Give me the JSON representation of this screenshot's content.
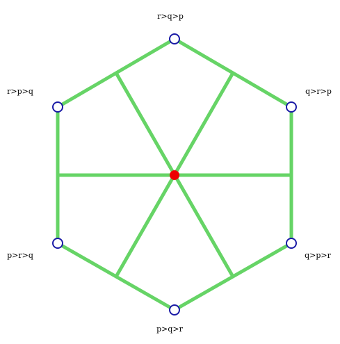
{
  "diagram": {
    "labels": {
      "top": "r>q>p",
      "upper_left": "r>p>q",
      "upper_right": "q>r>p",
      "lower_left": "p>r>q",
      "lower_right": "q>p>r",
      "bottom": "p>q>r"
    },
    "colors": {
      "edge": "#66d466",
      "vertex_stroke": "#1a1aa6",
      "vertex_fill": "#ffffff",
      "center_fill": "#ee0000"
    }
  }
}
